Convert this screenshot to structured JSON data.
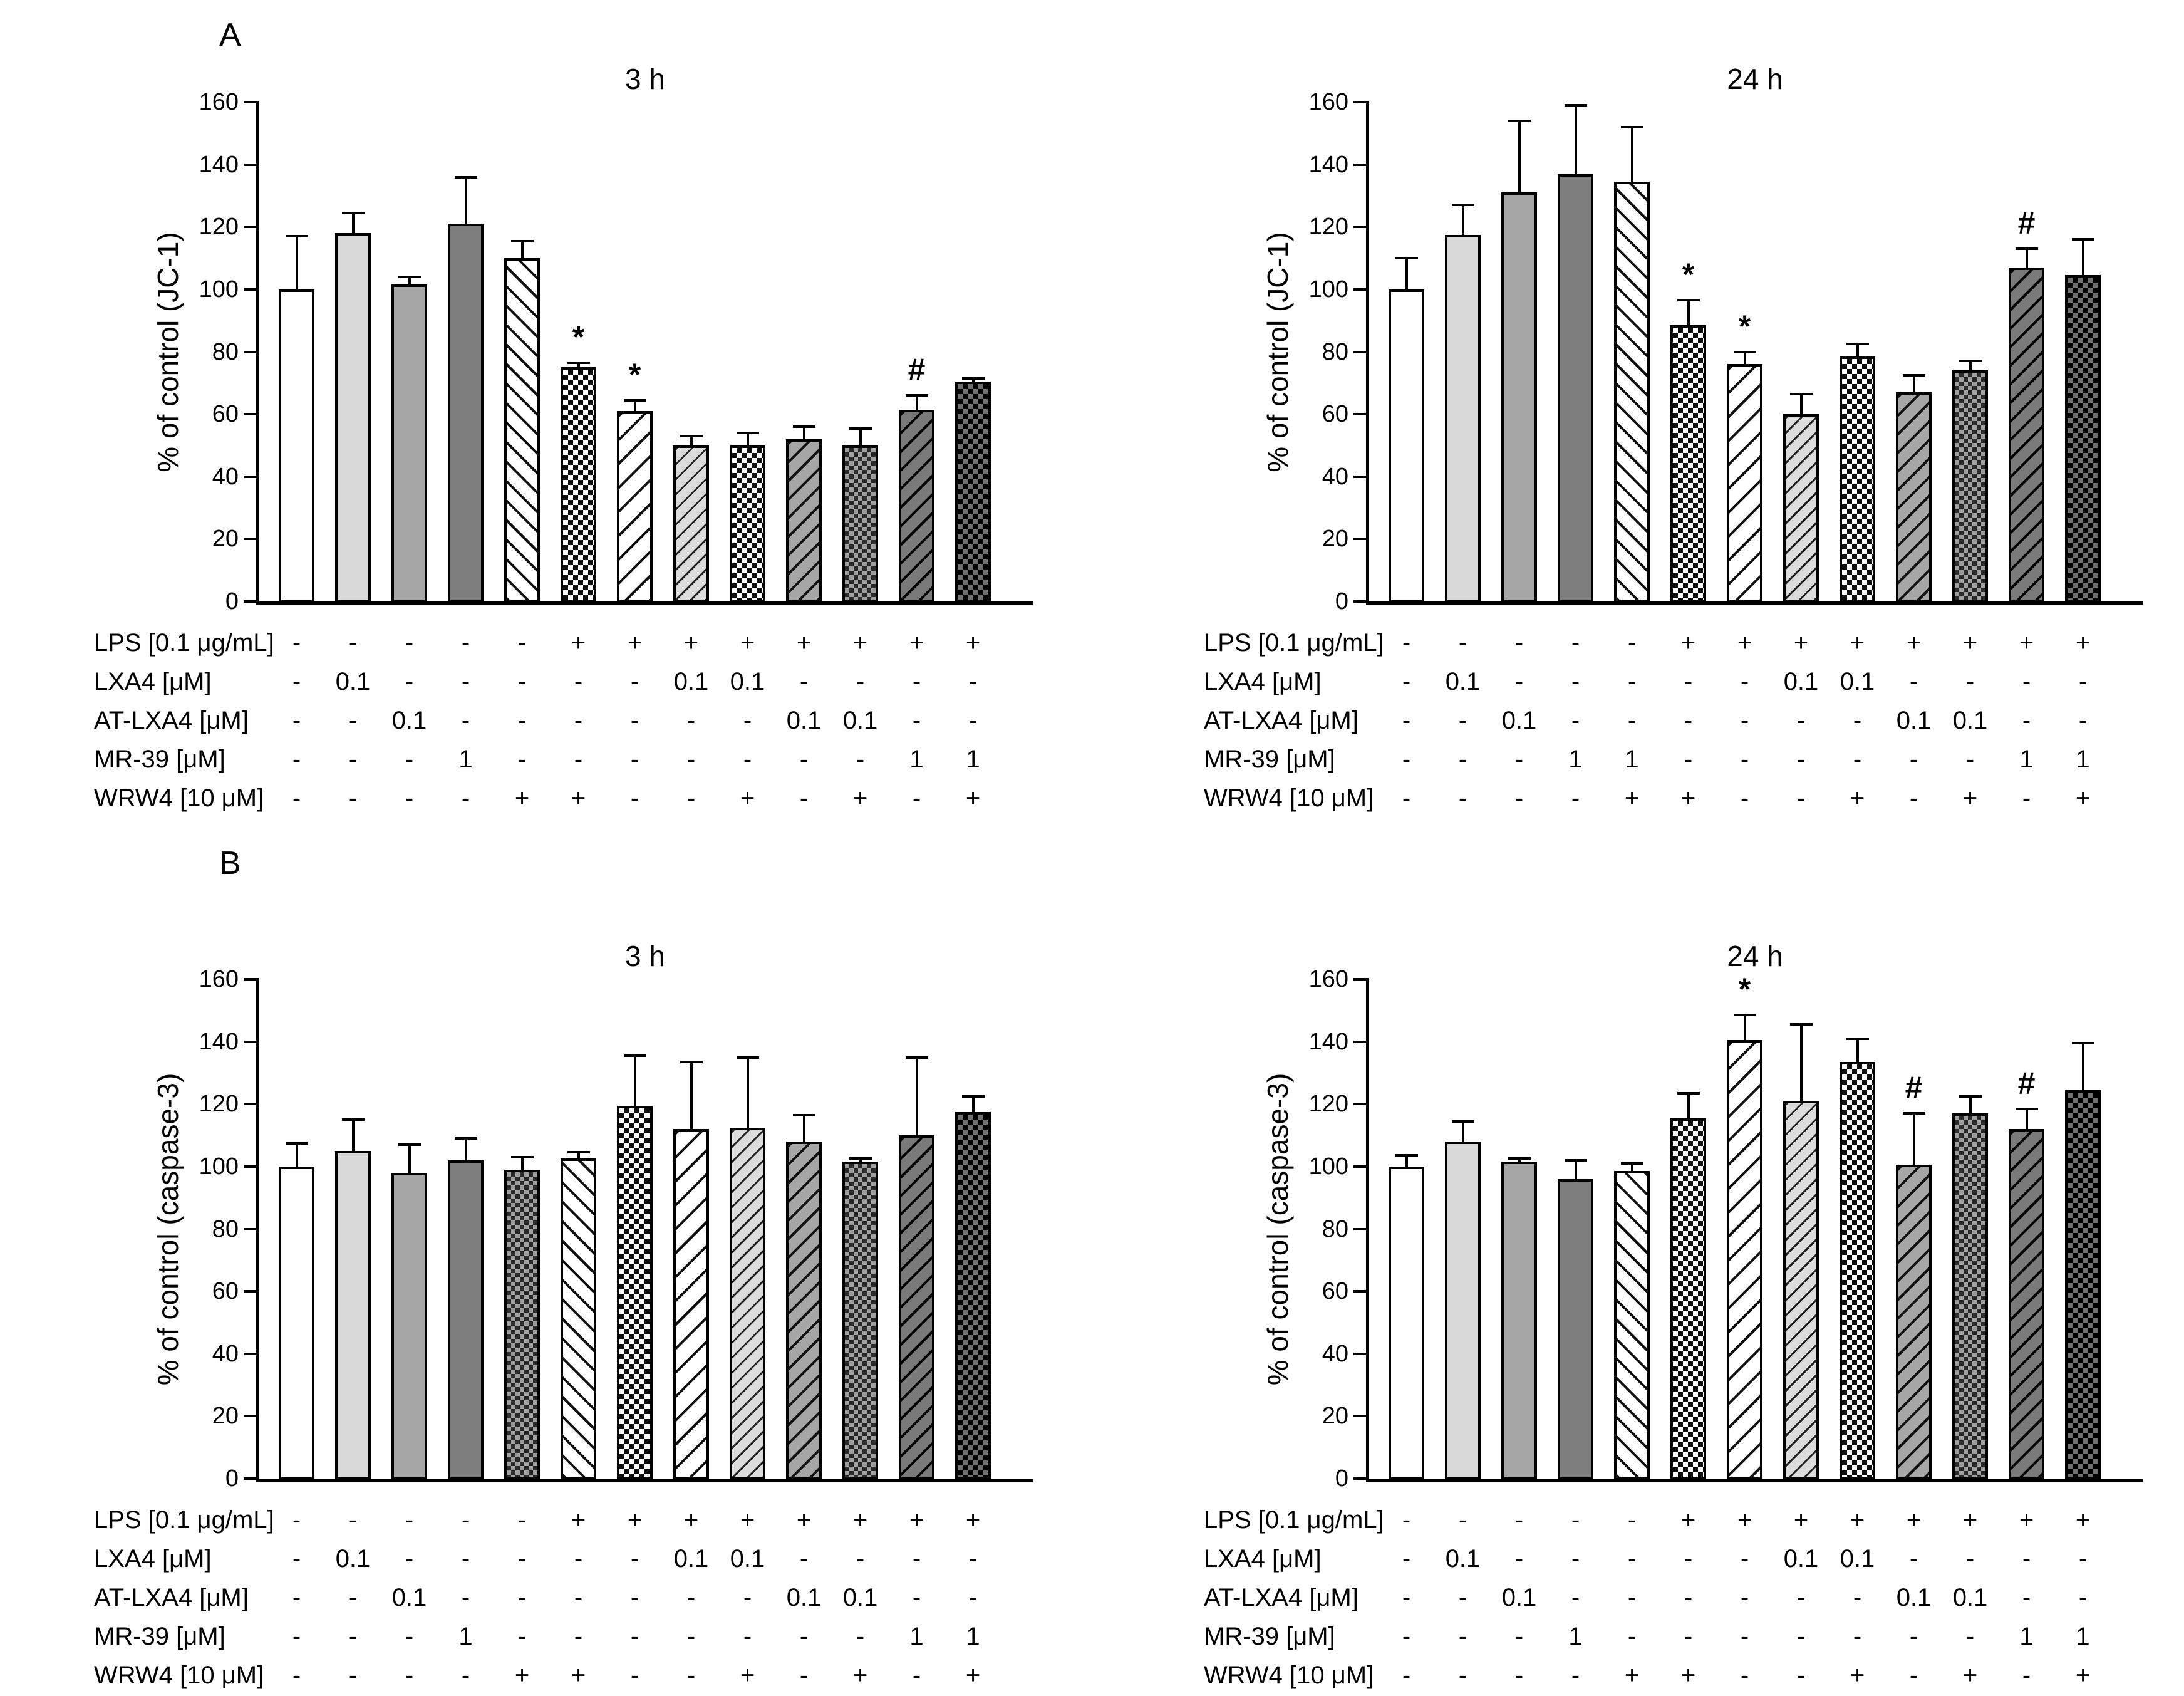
{
  "panels": [
    {
      "label": "A"
    },
    {
      "label": "B"
    }
  ],
  "chart_data": [
    {
      "id": "jc1-3h",
      "panel": "A",
      "type": "bar",
      "title": "3 h",
      "ylabel": "% of control (JC-1)",
      "ylim": [
        0,
        160
      ],
      "yticks": [
        0,
        20,
        40,
        60,
        80,
        100,
        120,
        140,
        160
      ],
      "values": [
        100,
        118,
        101.5,
        121,
        110,
        75,
        61,
        50,
        50,
        52,
        50,
        61.5,
        70.5
      ],
      "sd_upper": [
        17,
        6.5,
        2.5,
        15,
        5.5,
        1.5,
        3.5,
        3,
        4,
        4,
        5.5,
        4.5,
        1
      ],
      "sig": [
        "",
        "",
        "",
        "",
        "",
        "*",
        "*",
        "",
        "",
        "",
        "",
        "#",
        ""
      ],
      "patterns": [
        "solid-white",
        "solid-light",
        "solid-mid",
        "solid-dark",
        "hatch-back",
        "checker-bw",
        "hatch-fwd",
        "hatch-fwd-light",
        "checker-bw",
        "hatch-fwd-gray",
        "checker-gray",
        "hatch-fwd-dark",
        "checker-dark"
      ],
      "treatments": [
        {
          "label": "LPS [0.1 μg/mL]",
          "values": [
            "-",
            "-",
            "-",
            "-",
            "-",
            "+",
            "+",
            "+",
            "+",
            "+",
            "+",
            "+",
            "+"
          ]
        },
        {
          "label": "LXA4 [μM]",
          "values": [
            "-",
            "0.1",
            "-",
            "-",
            "-",
            "-",
            "-",
            "0.1",
            "0.1",
            "-",
            "-",
            "-",
            "-"
          ]
        },
        {
          "label": "AT-LXA4 [μM]",
          "values": [
            "-",
            "-",
            "0.1",
            "-",
            "-",
            "-",
            "-",
            "-",
            "-",
            "0.1",
            "0.1",
            "-",
            "-"
          ]
        },
        {
          "label": "MR-39 [μM]",
          "values": [
            "-",
            "-",
            "-",
            "1",
            "-",
            "-",
            "-",
            "-",
            "-",
            "-",
            "-",
            "1",
            "1"
          ]
        },
        {
          "label": "WRW4 [10 μM]",
          "values": [
            "-",
            "-",
            "-",
            "-",
            "+",
            "+",
            "-",
            "-",
            "+",
            "-",
            "+",
            "-",
            "+"
          ]
        }
      ]
    },
    {
      "id": "jc1-24h",
      "panel": "A",
      "type": "bar",
      "title": "24 h",
      "ylabel": "% of control (JC-1)",
      "ylim": [
        0,
        160
      ],
      "yticks": [
        0,
        20,
        40,
        60,
        80,
        100,
        120,
        140,
        160
      ],
      "values": [
        100,
        117.5,
        131,
        137,
        134.5,
        88.5,
        76,
        60,
        78.5,
        67,
        74,
        107,
        104.5
      ],
      "sd_upper": [
        10,
        9.5,
        23,
        22,
        17.5,
        8,
        4,
        6.5,
        4,
        5.5,
        3,
        6,
        11.5
      ],
      "sig": [
        "",
        "",
        "",
        "",
        "",
        "*",
        "*",
        "",
        "",
        "",
        "",
        "#",
        ""
      ],
      "patterns": [
        "solid-white",
        "solid-light",
        "solid-mid",
        "solid-dark",
        "hatch-back",
        "checker-bw",
        "hatch-fwd",
        "hatch-fwd-light",
        "checker-bw",
        "hatch-fwd-gray",
        "checker-gray",
        "hatch-fwd-dark",
        "checker-dark"
      ],
      "treatments": [
        {
          "label": "LPS [0.1 μg/mL]",
          "values": [
            "-",
            "-",
            "-",
            "-",
            "-",
            "+",
            "+",
            "+",
            "+",
            "+",
            "+",
            "+",
            "+"
          ]
        },
        {
          "label": "LXA4 [μM]",
          "values": [
            "-",
            "0.1",
            "-",
            "-",
            "-",
            "-",
            "-",
            "0.1",
            "0.1",
            "-",
            "-",
            "-",
            "-"
          ]
        },
        {
          "label": "AT-LXA4 [μM]",
          "values": [
            "-",
            "-",
            "0.1",
            "-",
            "-",
            "-",
            "-",
            "-",
            "-",
            "0.1",
            "0.1",
            "-",
            "-"
          ]
        },
        {
          "label": "MR-39 [μM]",
          "values": [
            "-",
            "-",
            "-",
            "1",
            "1",
            "-",
            "-",
            "-",
            "-",
            "-",
            "-",
            "1",
            "1"
          ]
        },
        {
          "label": "WRW4 [10 μM]",
          "values": [
            "-",
            "-",
            "-",
            "-",
            "+",
            "+",
            "-",
            "-",
            "+",
            "-",
            "+",
            "-",
            "+"
          ]
        }
      ]
    },
    {
      "id": "caspase3-3h",
      "panel": "B",
      "type": "bar",
      "title": "3 h",
      "ylabel": "% of control (caspase-3)",
      "ylim": [
        0,
        160
      ],
      "yticks": [
        0,
        20,
        40,
        60,
        80,
        100,
        120,
        140,
        160
      ],
      "values": [
        100,
        105,
        98,
        102,
        99,
        102.5,
        119.5,
        112,
        112.5,
        108,
        101.5,
        110,
        117.5
      ],
      "sd_upper": [
        7.5,
        10,
        9,
        7,
        4,
        2,
        16,
        21.5,
        22.5,
        8.5,
        1,
        25,
        5
      ],
      "sig": [
        "",
        "",
        "",
        "",
        "",
        "",
        "",
        "",
        "",
        "",
        "",
        "",
        ""
      ],
      "patterns": [
        "solid-white",
        "solid-light",
        "solid-mid",
        "solid-dark",
        "checker-gray",
        "hatch-back",
        "checker-bw",
        "hatch-fwd",
        "hatch-fwd-light",
        "hatch-fwd-gray",
        "checker-gray",
        "hatch-fwd-dark",
        "checker-dark"
      ],
      "treatments": [
        {
          "label": "LPS [0.1 μg/mL]",
          "values": [
            "-",
            "-",
            "-",
            "-",
            "-",
            "+",
            "+",
            "+",
            "+",
            "+",
            "+",
            "+",
            "+"
          ]
        },
        {
          "label": "LXA4 [μM]",
          "values": [
            "-",
            "0.1",
            "-",
            "-",
            "-",
            "-",
            "-",
            "0.1",
            "0.1",
            "-",
            "-",
            "-",
            "-"
          ]
        },
        {
          "label": "AT-LXA4 [μM]",
          "values": [
            "-",
            "-",
            "0.1",
            "-",
            "-",
            "-",
            "-",
            "-",
            "-",
            "0.1",
            "0.1",
            "-",
            "-"
          ]
        },
        {
          "label": "MR-39 [μM]",
          "values": [
            "-",
            "-",
            "-",
            "1",
            "-",
            "-",
            "-",
            "-",
            "-",
            "-",
            "-",
            "1",
            "1"
          ]
        },
        {
          "label": "WRW4 [10 μM]",
          "values": [
            "-",
            "-",
            "-",
            "-",
            "+",
            "+",
            "-",
            "-",
            "+",
            "-",
            "+",
            "-",
            "+"
          ]
        }
      ]
    },
    {
      "id": "caspase3-24h",
      "panel": "B",
      "type": "bar",
      "title": "24 h",
      "ylabel": "% of control (caspase-3)",
      "ylim": [
        0,
        160
      ],
      "yticks": [
        0,
        20,
        40,
        60,
        80,
        100,
        120,
        140,
        160
      ],
      "values": [
        100,
        108,
        101.5,
        96,
        98.5,
        115.5,
        140.5,
        121,
        133.5,
        100.5,
        117,
        112,
        124.5
      ],
      "sd_upper": [
        3.5,
        6.5,
        1,
        6,
        2.5,
        8,
        8,
        24.5,
        7.5,
        16.5,
        5.5,
        6.5,
        15
      ],
      "sig": [
        "",
        "",
        "",
        "",
        "",
        "",
        "*",
        "",
        "",
        "#",
        "",
        "#",
        ""
      ],
      "patterns": [
        "solid-white",
        "solid-light",
        "solid-mid",
        "solid-dark",
        "hatch-back",
        "checker-bw",
        "hatch-fwd",
        "hatch-fwd-light",
        "checker-bw",
        "hatch-fwd-gray",
        "checker-gray",
        "hatch-fwd-dark",
        "checker-dark"
      ],
      "treatments": [
        {
          "label": "LPS [0.1 μg/mL]",
          "values": [
            "-",
            "-",
            "-",
            "-",
            "-",
            "+",
            "+",
            "+",
            "+",
            "+",
            "+",
            "+",
            "+"
          ]
        },
        {
          "label": "LXA4 [μM]",
          "values": [
            "-",
            "0.1",
            "-",
            "-",
            "-",
            "-",
            "-",
            "0.1",
            "0.1",
            "-",
            "-",
            "-",
            "-"
          ]
        },
        {
          "label": "AT-LXA4 [μM]",
          "values": [
            "-",
            "-",
            "0.1",
            "-",
            "-",
            "-",
            "-",
            "-",
            "-",
            "0.1",
            "0.1",
            "-",
            "-"
          ]
        },
        {
          "label": "MR-39 [μM]",
          "values": [
            "-",
            "-",
            "-",
            "1",
            "-",
            "-",
            "-",
            "-",
            "-",
            "-",
            "-",
            "1",
            "1"
          ]
        },
        {
          "label": "WRW4 [10 μM]",
          "values": [
            "-",
            "-",
            "-",
            "-",
            "+",
            "+",
            "-",
            "-",
            "+",
            "-",
            "+",
            "-",
            "+"
          ]
        }
      ]
    }
  ]
}
